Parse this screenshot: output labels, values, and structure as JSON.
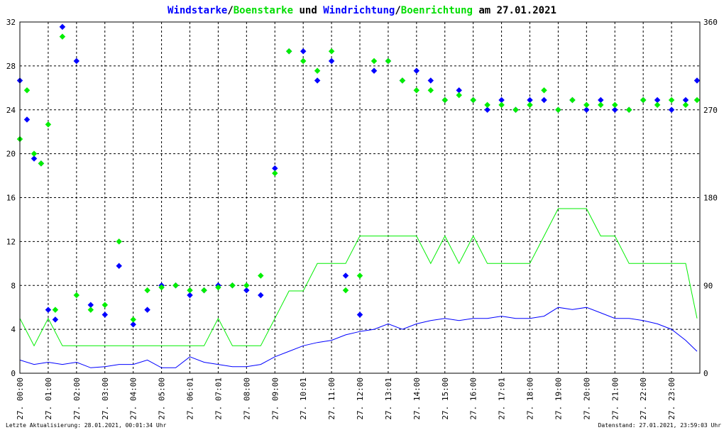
{
  "chart_data": {
    "type": "line",
    "title_parts": [
      {
        "text": "Windstarke",
        "color": "#0000ff"
      },
      {
        "text": "/",
        "color": "#000000"
      },
      {
        "text": "Boenstarke",
        "color": "#00dd00"
      },
      {
        "text": " und ",
        "color": "#000000"
      },
      {
        "text": "Windrichtung",
        "color": "#0000ff"
      },
      {
        "text": "/",
        "color": "#000000"
      },
      {
        "text": "Boenrichtung",
        "color": "#00dd00"
      },
      {
        "text": " am 27.01.2021",
        "color": "#000000"
      }
    ],
    "ylim": [
      0,
      32
    ],
    "y2lim": [
      0,
      360
    ],
    "xlim": [
      0,
      24
    ],
    "yticks": [
      0,
      4,
      8,
      12,
      16,
      20,
      24,
      28,
      32
    ],
    "y2ticks": [
      0,
      90,
      180,
      270,
      360
    ],
    "xticks": [
      {
        "h": 0,
        "label": "27. 00:00"
      },
      {
        "h": 1,
        "label": "27. 01:00"
      },
      {
        "h": 2,
        "label": "27. 02:00"
      },
      {
        "h": 3,
        "label": "27. 03:00"
      },
      {
        "h": 4,
        "label": "27. 04:00"
      },
      {
        "h": 5,
        "label": "27. 05:00"
      },
      {
        "h": 6,
        "label": "27. 06:01"
      },
      {
        "h": 7,
        "label": "27. 07:01"
      },
      {
        "h": 8,
        "label": "27. 08:00"
      },
      {
        "h": 9,
        "label": "27. 09:00"
      },
      {
        "h": 10,
        "label": "27. 10:01"
      },
      {
        "h": 11,
        "label": "27. 11:00"
      },
      {
        "h": 12,
        "label": "27. 12:00"
      },
      {
        "h": 13,
        "label": "27. 13:01"
      },
      {
        "h": 14,
        "label": "27. 14:00"
      },
      {
        "h": 15,
        "label": "27. 15:00"
      },
      {
        "h": 16,
        "label": "27. 16:00"
      },
      {
        "h": 17,
        "label": "27. 17:01"
      },
      {
        "h": 18,
        "label": "27. 18:00"
      },
      {
        "h": 19,
        "label": "27. 19:00"
      },
      {
        "h": 20,
        "label": "27. 20:00"
      },
      {
        "h": 21,
        "label": "27. 21:00"
      },
      {
        "h": 22,
        "label": "27. 22:00"
      },
      {
        "h": 23,
        "label": "27. 23:00"
      }
    ],
    "grid": true,
    "colors": {
      "wind": "#0000ff",
      "gust": "#00ee00",
      "grid": "#000000",
      "frame": "#000000"
    },
    "series": [
      {
        "name": "Windstarke",
        "axis": "left",
        "kind": "line",
        "color": "#0000ff",
        "x": [
          0,
          0.5,
          1,
          1.5,
          2,
          2.5,
          3,
          3.5,
          4,
          4.5,
          5,
          5.5,
          6,
          6.5,
          7,
          7.5,
          8,
          8.5,
          9,
          9.5,
          10,
          10.5,
          11,
          11.5,
          12,
          12.5,
          13,
          13.5,
          14,
          14.5,
          15,
          15.5,
          16,
          16.5,
          17,
          17.5,
          18,
          18.5,
          19,
          19.5,
          20,
          20.5,
          21,
          21.5,
          22,
          22.5,
          23,
          23.5,
          23.9
        ],
        "y": [
          1.2,
          0.8,
          1.0,
          0.8,
          1.0,
          0.5,
          0.6,
          0.8,
          0.8,
          1.2,
          0.5,
          0.5,
          1.5,
          1.0,
          0.8,
          0.6,
          0.6,
          0.8,
          1.5,
          2.0,
          2.5,
          2.8,
          3.0,
          3.5,
          3.8,
          4.0,
          4.5,
          4.0,
          4.5,
          4.8,
          5.0,
          4.8,
          5.0,
          5.0,
          5.2,
          5.0,
          5.0,
          5.2,
          6.0,
          5.8,
          6.0,
          5.5,
          5.0,
          5.0,
          4.8,
          4.5,
          4.0,
          3.0,
          2.0
        ]
      },
      {
        "name": "Boenstarke",
        "axis": "left",
        "kind": "line",
        "color": "#00ee00",
        "x": [
          0,
          0.5,
          1,
          1.5,
          2,
          2.5,
          3,
          3.5,
          4,
          4.5,
          5,
          5.5,
          6,
          6.5,
          7,
          7.5,
          8,
          8.5,
          9,
          9.5,
          10,
          10.5,
          11,
          11.5,
          12,
          12.5,
          13,
          13.5,
          14,
          14.5,
          15,
          15.5,
          16,
          16.5,
          17,
          17.5,
          18,
          18.5,
          19,
          19.5,
          20,
          20.5,
          21,
          21.5,
          22,
          22.5,
          23,
          23.5,
          23.9
        ],
        "y": [
          5.0,
          2.5,
          5.0,
          2.5,
          2.5,
          2.5,
          2.5,
          2.5,
          2.5,
          2.5,
          2.5,
          2.5,
          2.5,
          2.5,
          5.0,
          2.5,
          2.5,
          2.5,
          5.0,
          7.5,
          7.5,
          10.0,
          10.0,
          10.0,
          12.5,
          12.5,
          12.5,
          12.5,
          12.5,
          10.0,
          12.5,
          10.0,
          12.5,
          10.0,
          10.0,
          10.0,
          10.0,
          12.5,
          15.0,
          15.0,
          15.0,
          12.5,
          12.5,
          10.0,
          10.0,
          10.0,
          10.0,
          10.0,
          5.0
        ]
      },
      {
        "name": "Windrichtung",
        "axis": "right",
        "kind": "points",
        "color": "#0000ff",
        "x": [
          0,
          0.25,
          0.5,
          0.75,
          1,
          1.25,
          1.5,
          2,
          2.5,
          3,
          3.5,
          4,
          4.5,
          5,
          5.5,
          6,
          6.5,
          7,
          7.5,
          8,
          8.5,
          9,
          9.5,
          10,
          10.5,
          11,
          11.5,
          12,
          12.5,
          13,
          13.5,
          14,
          14.5,
          15,
          15.5,
          16,
          16.5,
          17,
          17.5,
          18,
          18.5,
          19,
          19.5,
          20,
          20.5,
          21,
          21.5,
          22,
          22.5,
          23,
          23.5,
          23.9
        ],
        "y": [
          300,
          260,
          220,
          215,
          65,
          55,
          355,
          320,
          70,
          60,
          110,
          50,
          65,
          90,
          90,
          80,
          85,
          90,
          90,
          85,
          80,
          210,
          330,
          330,
          300,
          320,
          100,
          60,
          310,
          320,
          300,
          310,
          300,
          280,
          290,
          280,
          270,
          280,
          270,
          280,
          280,
          270,
          280,
          270,
          280,
          270,
          270,
          280,
          280,
          270,
          280,
          300
        ]
      },
      {
        "name": "Boenrichtung",
        "axis": "right",
        "kind": "points",
        "color": "#00ee00",
        "x": [
          0,
          0.25,
          0.5,
          0.75,
          1,
          1.25,
          1.5,
          2,
          2.5,
          3,
          3.5,
          4,
          4.5,
          5,
          5.5,
          6,
          6.5,
          7,
          7.5,
          8,
          8.5,
          9,
          9.5,
          10,
          10.5,
          11,
          11.5,
          12,
          12.5,
          13,
          13.5,
          14,
          14.5,
          15,
          15.5,
          16,
          16.5,
          17,
          17.5,
          18,
          18.5,
          19,
          19.5,
          20,
          20.5,
          21,
          21.5,
          22,
          22.5,
          23,
          23.5,
          23.9
        ],
        "y": [
          240,
          290,
          225,
          215,
          255,
          65,
          345,
          80,
          65,
          70,
          135,
          55,
          85,
          88,
          90,
          85,
          85,
          88,
          90,
          90,
          100,
          205,
          330,
          320,
          310,
          330,
          85,
          100,
          320,
          320,
          300,
          290,
          290,
          280,
          285,
          280,
          275,
          275,
          270,
          275,
          290,
          270,
          280,
          275,
          275,
          275,
          270,
          280,
          275,
          280,
          275,
          280
        ]
      }
    ]
  },
  "footer": {
    "left": "Letzte Aktualisierung: 28.01.2021, 00:01:34 Uhr",
    "right": "Datenstand: 27.01.2021, 23:59:03 Uhr"
  }
}
